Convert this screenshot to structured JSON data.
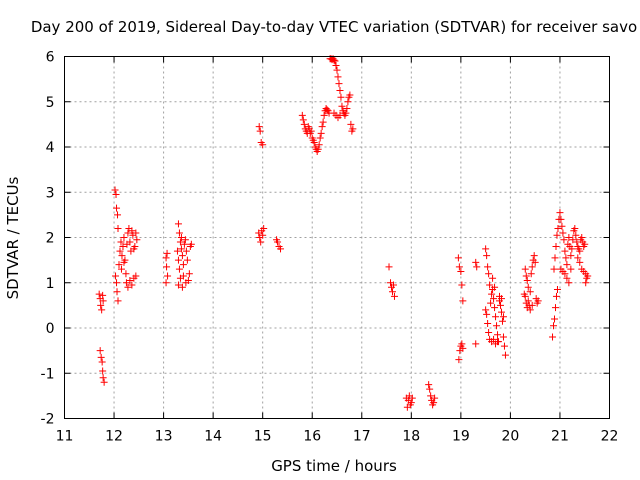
{
  "chart_data": {
    "type": "scatter",
    "title": "Day 200 of 2019, Sidereal Day-to-day VTEC variation (SDTVAR) for receiver savo",
    "xlabel": "GPS time / hours",
    "ylabel": "SDTVAR / TECUs",
    "xlim": [
      11,
      22
    ],
    "ylim": [
      -2,
      6
    ],
    "xticks": [
      "11",
      "12",
      "13",
      "14",
      "15",
      "16",
      "17",
      "18",
      "19",
      "20",
      "21",
      "22"
    ],
    "yticks": [
      "-2",
      "-1",
      "0",
      "1",
      "2",
      "3",
      "4",
      "5",
      "6"
    ],
    "grid": true,
    "marker": "plus",
    "marker_color": "#ff0000",
    "series": [
      {
        "name": "SDTVAR",
        "points": [
          [
            11.7,
            0.75
          ],
          [
            11.72,
            0.65
          ],
          [
            11.73,
            0.5
          ],
          [
            11.75,
            0.4
          ],
          [
            11.77,
            0.72
          ],
          [
            11.78,
            0.6
          ],
          [
            11.72,
            -0.5
          ],
          [
            11.74,
            -0.65
          ],
          [
            11.76,
            -0.75
          ],
          [
            11.77,
            -0.95
          ],
          [
            11.78,
            -1.1
          ],
          [
            11.8,
            -1.2
          ],
          [
            12.02,
            3.05
          ],
          [
            12.04,
            2.95
          ],
          [
            12.05,
            2.65
          ],
          [
            12.07,
            2.5
          ],
          [
            12.08,
            2.2
          ],
          [
            12.03,
            1.15
          ],
          [
            12.05,
            1.0
          ],
          [
            12.06,
            0.8
          ],
          [
            12.08,
            0.6
          ],
          [
            12.1,
            1.4
          ],
          [
            12.12,
            1.7
          ],
          [
            12.14,
            1.9
          ],
          [
            12.16,
            1.6
          ],
          [
            12.18,
            1.8
          ],
          [
            12.2,
            2.0
          ],
          [
            12.22,
            1.5
          ],
          [
            12.24,
            1.2
          ],
          [
            12.26,
            1.85
          ],
          [
            12.28,
            2.1
          ],
          [
            12.3,
            2.2
          ],
          [
            12.32,
            1.9
          ],
          [
            12.34,
            1.7
          ],
          [
            12.36,
            2.15
          ],
          [
            12.38,
            2.05
          ],
          [
            12.4,
            1.75
          ],
          [
            12.42,
            1.8
          ],
          [
            12.44,
            2.1
          ],
          [
            12.46,
            1.95
          ],
          [
            12.25,
            1.0
          ],
          [
            12.28,
            0.9
          ],
          [
            12.32,
            1.05
          ],
          [
            12.36,
            0.95
          ],
          [
            12.4,
            1.1
          ],
          [
            12.44,
            1.15
          ],
          [
            12.15,
            1.3
          ],
          [
            12.2,
            1.45
          ],
          [
            13.05,
            1.55
          ],
          [
            13.06,
            1.35
          ],
          [
            13.08,
            1.15
          ],
          [
            13.05,
            1.0
          ],
          [
            13.07,
            1.65
          ],
          [
            13.3,
            2.3
          ],
          [
            13.32,
            2.1
          ],
          [
            13.34,
            1.9
          ],
          [
            13.28,
            1.7
          ],
          [
            13.3,
            1.5
          ],
          [
            13.32,
            1.3
          ],
          [
            13.34,
            1.1
          ],
          [
            13.3,
            0.95
          ],
          [
            13.36,
            1.75
          ],
          [
            13.38,
            1.6
          ],
          [
            13.4,
            1.4
          ],
          [
            13.42,
            1.85
          ],
          [
            13.44,
            1.95
          ],
          [
            13.46,
            1.7
          ],
          [
            13.48,
            1.5
          ],
          [
            13.5,
            1.05
          ],
          [
            13.52,
            1.2
          ],
          [
            13.54,
            1.8
          ],
          [
            13.56,
            1.85
          ],
          [
            13.45,
            1.0
          ],
          [
            13.4,
            1.15
          ],
          [
            13.36,
            2.0
          ],
          [
            13.38,
            0.9
          ],
          [
            14.93,
            4.45
          ],
          [
            14.95,
            4.35
          ],
          [
            14.97,
            4.1
          ],
          [
            15.0,
            4.05
          ],
          [
            14.92,
            2.1
          ],
          [
            14.94,
            2.0
          ],
          [
            14.96,
            1.9
          ],
          [
            14.98,
            2.15
          ],
          [
            15.0,
            2.05
          ],
          [
            15.02,
            2.2
          ],
          [
            15.28,
            1.95
          ],
          [
            15.3,
            1.9
          ],
          [
            15.33,
            1.8
          ],
          [
            15.36,
            1.75
          ],
          [
            15.8,
            4.7
          ],
          [
            15.82,
            4.6
          ],
          [
            15.84,
            4.5
          ],
          [
            15.86,
            4.4
          ],
          [
            15.88,
            4.35
          ],
          [
            15.9,
            4.3
          ],
          [
            15.92,
            4.45
          ],
          [
            15.94,
            4.4
          ],
          [
            15.96,
            4.3
          ],
          [
            15.98,
            4.35
          ],
          [
            16.0,
            4.2
          ],
          [
            16.02,
            4.15
          ],
          [
            16.04,
            4.1
          ],
          [
            16.06,
            4.0
          ],
          [
            16.08,
            3.95
          ],
          [
            16.1,
            3.9
          ],
          [
            16.12,
            3.95
          ],
          [
            16.14,
            4.05
          ],
          [
            16.16,
            4.2
          ],
          [
            16.18,
            4.3
          ],
          [
            16.2,
            4.45
          ],
          [
            16.22,
            4.55
          ],
          [
            16.24,
            4.7
          ],
          [
            16.26,
            4.8
          ],
          [
            16.28,
            4.85
          ],
          [
            16.3,
            4.82
          ],
          [
            16.32,
            4.8
          ],
          [
            16.34,
            4.75
          ],
          [
            16.36,
            5.95
          ],
          [
            16.38,
            5.95
          ],
          [
            16.4,
            5.93
          ],
          [
            16.42,
            5.95
          ],
          [
            16.44,
            5.92
          ],
          [
            16.46,
            5.9
          ],
          [
            16.48,
            5.8
          ],
          [
            16.5,
            5.7
          ],
          [
            16.52,
            5.55
          ],
          [
            16.54,
            5.4
          ],
          [
            16.56,
            5.25
          ],
          [
            16.58,
            5.1
          ],
          [
            16.6,
            4.9
          ],
          [
            16.62,
            4.8
          ],
          [
            16.64,
            4.75
          ],
          [
            16.66,
            4.7
          ],
          [
            16.68,
            4.75
          ],
          [
            16.7,
            4.85
          ],
          [
            16.72,
            5.0
          ],
          [
            16.74,
            5.1
          ],
          [
            16.76,
            5.15
          ],
          [
            16.78,
            4.5
          ],
          [
            16.8,
            4.35
          ],
          [
            16.82,
            4.4
          ],
          [
            16.44,
            4.75
          ],
          [
            16.48,
            4.7
          ],
          [
            16.52,
            4.65
          ],
          [
            16.56,
            4.7
          ],
          [
            17.55,
            1.35
          ],
          [
            17.58,
            1.0
          ],
          [
            17.6,
            0.9
          ],
          [
            17.62,
            0.8
          ],
          [
            17.64,
            0.95
          ],
          [
            17.66,
            0.7
          ],
          [
            17.9,
            -1.55
          ],
          [
            17.92,
            -1.75
          ],
          [
            17.94,
            -1.6
          ],
          [
            17.96,
            -1.5
          ],
          [
            17.98,
            -1.7
          ],
          [
            18.0,
            -1.65
          ],
          [
            18.02,
            -1.55
          ],
          [
            18.35,
            -1.25
          ],
          [
            18.37,
            -1.35
          ],
          [
            18.39,
            -1.5
          ],
          [
            18.41,
            -1.6
          ],
          [
            18.43,
            -1.7
          ],
          [
            18.45,
            -1.65
          ],
          [
            18.47,
            -1.55
          ],
          [
            18.95,
            1.55
          ],
          [
            18.97,
            1.35
          ],
          [
            19.0,
            1.25
          ],
          [
            19.02,
            0.95
          ],
          [
            19.04,
            0.6
          ],
          [
            18.96,
            -0.7
          ],
          [
            18.98,
            -0.5
          ],
          [
            19.0,
            -0.4
          ],
          [
            19.02,
            -0.35
          ],
          [
            19.04,
            -0.45
          ],
          [
            19.3,
            1.45
          ],
          [
            19.32,
            1.35
          ],
          [
            19.3,
            -0.35
          ],
          [
            19.5,
            1.75
          ],
          [
            19.52,
            1.6
          ],
          [
            19.54,
            1.35
          ],
          [
            19.56,
            1.2
          ],
          [
            19.58,
            0.95
          ],
          [
            19.5,
            0.4
          ],
          [
            19.52,
            0.3
          ],
          [
            19.54,
            0.1
          ],
          [
            19.56,
            -0.1
          ],
          [
            19.58,
            -0.25
          ],
          [
            19.6,
            0.55
          ],
          [
            19.62,
            0.75
          ],
          [
            19.64,
            0.85
          ],
          [
            19.66,
            0.65
          ],
          [
            19.68,
            0.45
          ],
          [
            19.7,
            0.25
          ],
          [
            19.72,
            0.05
          ],
          [
            19.74,
            -0.15
          ],
          [
            19.76,
            -0.3
          ],
          [
            19.78,
            0.6
          ],
          [
            19.8,
            0.5
          ],
          [
            19.82,
            0.35
          ],
          [
            19.84,
            0.15
          ],
          [
            19.86,
            -0.2
          ],
          [
            19.88,
            -0.4
          ],
          [
            19.9,
            -0.6
          ],
          [
            19.62,
            -0.3
          ],
          [
            19.66,
            -0.25
          ],
          [
            19.7,
            -0.35
          ],
          [
            19.74,
            -0.3
          ],
          [
            19.78,
            0.7
          ],
          [
            19.82,
            0.65
          ],
          [
            19.86,
            0.25
          ],
          [
            19.64,
            1.1
          ],
          [
            19.68,
            0.9
          ],
          [
            20.3,
            1.3
          ],
          [
            20.32,
            1.15
          ],
          [
            20.34,
            1.05
          ],
          [
            20.36,
            0.9
          ],
          [
            20.3,
            0.7
          ],
          [
            20.32,
            0.55
          ],
          [
            20.34,
            0.45
          ],
          [
            20.36,
            0.6
          ],
          [
            20.38,
            0.5
          ],
          [
            20.4,
            0.4
          ],
          [
            20.42,
            1.2
          ],
          [
            20.44,
            1.35
          ],
          [
            20.46,
            1.5
          ],
          [
            20.48,
            1.6
          ],
          [
            20.5,
            1.45
          ],
          [
            20.52,
            0.65
          ],
          [
            20.54,
            0.55
          ],
          [
            20.56,
            0.6
          ],
          [
            20.28,
            0.75
          ],
          [
            20.4,
            0.8
          ],
          [
            20.44,
            0.5
          ],
          [
            20.85,
            -0.2
          ],
          [
            20.87,
            0.05
          ],
          [
            20.89,
            0.2
          ],
          [
            20.91,
            0.45
          ],
          [
            20.93,
            0.7
          ],
          [
            20.95,
            0.85
          ],
          [
            20.88,
            1.3
          ],
          [
            20.9,
            1.55
          ],
          [
            20.92,
            1.8
          ],
          [
            20.94,
            2.05
          ],
          [
            20.96,
            2.2
          ],
          [
            20.98,
            2.4
          ],
          [
            21.0,
            2.55
          ],
          [
            21.02,
            2.4
          ],
          [
            21.04,
            2.25
          ],
          [
            21.06,
            2.1
          ],
          [
            21.08,
            1.95
          ],
          [
            21.1,
            1.7
          ],
          [
            21.12,
            1.55
          ],
          [
            21.14,
            1.4
          ],
          [
            21.16,
            1.85
          ],
          [
            21.18,
            2.0
          ],
          [
            21.2,
            1.8
          ],
          [
            21.22,
            1.6
          ],
          [
            21.24,
            1.75
          ],
          [
            21.26,
            1.95
          ],
          [
            21.28,
            2.15
          ],
          [
            21.3,
            2.2
          ],
          [
            21.32,
            2.05
          ],
          [
            21.34,
            1.9
          ],
          [
            21.36,
            1.8
          ],
          [
            21.38,
            1.75
          ],
          [
            21.4,
            1.7
          ],
          [
            21.42,
            1.95
          ],
          [
            21.44,
            2.0
          ],
          [
            21.46,
            1.9
          ],
          [
            21.48,
            1.8
          ],
          [
            21.5,
            1.85
          ],
          [
            21.52,
            1.2
          ],
          [
            21.54,
            1.1
          ],
          [
            21.56,
            1.15
          ],
          [
            21.14,
            1.1
          ],
          [
            21.18,
            1.0
          ],
          [
            21.02,
            1.3
          ],
          [
            21.06,
            1.25
          ],
          [
            21.36,
            1.55
          ],
          [
            21.4,
            1.45
          ],
          [
            21.44,
            1.3
          ],
          [
            21.48,
            1.25
          ],
          [
            21.52,
            1.0
          ],
          [
            21.1,
            1.2
          ],
          [
            21.22,
            1.3
          ]
        ]
      }
    ]
  }
}
